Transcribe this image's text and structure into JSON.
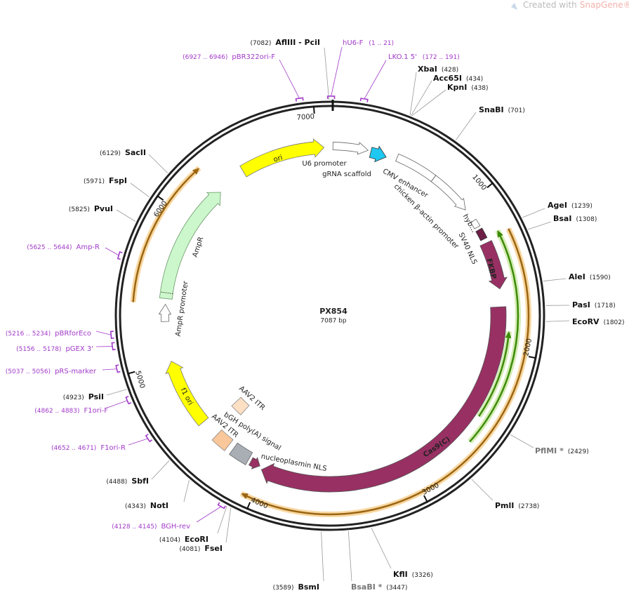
{
  "watermark": {
    "prefix": "Created with",
    "brand": "SnapGene®"
  },
  "plasmid": {
    "name": "PX854",
    "size": {
      "value": 7087,
      "label": "7087 bp"
    }
  },
  "ticks": [
    1000,
    2000,
    3000,
    4000,
    5000,
    6000,
    7000
  ],
  "features": [
    "ori",
    "U6 promoter",
    "gRNA scaffold",
    "CMV enhancer",
    "chicken β-actin promoter",
    "hyb...",
    "SV40 NLS",
    "FKBP",
    "Cas9(C)",
    "nucleoplasmin NLS",
    "bGH poly(A) signal",
    "AAV2 ITR",
    "AAV2 ITR",
    "f1 ori",
    "AmpR",
    "AmpR promoter"
  ],
  "enzymes": [
    {
      "name": "AflIII  - PciI",
      "position": {
        "value": 7082,
        "label": "(7082)"
      }
    },
    {
      "name": "XbaI",
      "position": {
        "value": 428,
        "label": "(428)"
      }
    },
    {
      "name": "Acc65I",
      "position": {
        "value": 434,
        "label": "(434)"
      }
    },
    {
      "name": "KpnI",
      "position": {
        "value": 438,
        "label": "(438)"
      }
    },
    {
      "name": "SnaBI",
      "position": {
        "value": 701,
        "label": "(701)"
      }
    },
    {
      "name": "AgeI",
      "position": {
        "value": 1239,
        "label": "(1239)"
      }
    },
    {
      "name": "BsaI",
      "position": {
        "value": 1308,
        "label": "(1308)"
      }
    },
    {
      "name": "AleI",
      "position": {
        "value": 1590,
        "label": "(1590)"
      }
    },
    {
      "name": "PasI",
      "position": {
        "value": 1718,
        "label": "(1718)"
      }
    },
    {
      "name": "EcoRV",
      "position": {
        "value": 1802,
        "label": "(1802)"
      }
    },
    {
      "name": "PflMI *",
      "position": {
        "value": 2429,
        "label": "(2429)"
      }
    },
    {
      "name": "PmlI",
      "position": {
        "value": 2738,
        "label": "(2738)"
      }
    },
    {
      "name": "KflI",
      "position": {
        "value": 3326,
        "label": "(3326)"
      }
    },
    {
      "name": "BsaBI *",
      "position": {
        "value": 3447,
        "label": "(3447)"
      }
    },
    {
      "name": "BsmI",
      "position": {
        "value": 3589,
        "label": "(3589)"
      }
    },
    {
      "name": "FseI",
      "position": {
        "value": 4081,
        "label": "(4081)"
      }
    },
    {
      "name": "EcoRI",
      "position": {
        "value": 4104,
        "label": "(4104)"
      }
    },
    {
      "name": "NotI",
      "position": {
        "value": 4343,
        "label": "(4343)"
      }
    },
    {
      "name": "SbfI",
      "position": {
        "value": 4488,
        "label": "(4488)"
      }
    },
    {
      "name": "PsiI",
      "position": {
        "value": 4923,
        "label": "(4923)"
      }
    },
    {
      "name": "PvuI",
      "position": {
        "value": 5825,
        "label": "(5825)"
      }
    },
    {
      "name": "FspI",
      "position": {
        "value": 5971,
        "label": "(5971)"
      }
    },
    {
      "name": "SacII",
      "position": {
        "value": 6129,
        "label": "(6129)"
      }
    }
  ],
  "primers": [
    {
      "name": "pBR322ori-F",
      "range": "(6927 .. 6946)"
    },
    {
      "name": "hU6-F",
      "range": "(1 .. 21)"
    },
    {
      "name": "LKO.1 5'",
      "range": "(172 .. 191)"
    },
    {
      "name": "Amp-R",
      "range": "(5625 .. 5644)"
    },
    {
      "name": "pBRforEco",
      "range": "(5216 .. 5234)"
    },
    {
      "name": "pGEX 3'",
      "range": "(5156 .. 5178)"
    },
    {
      "name": "pRS-marker",
      "range": "(5037 .. 5056)"
    },
    {
      "name": "F1ori-F",
      "range": "(4862 .. 4883)"
    },
    {
      "name": "F1ori-R",
      "range": "(4652 .. 4671)"
    },
    {
      "name": "BGH-rev",
      "range": "(4128 .. 4145)"
    }
  ]
}
